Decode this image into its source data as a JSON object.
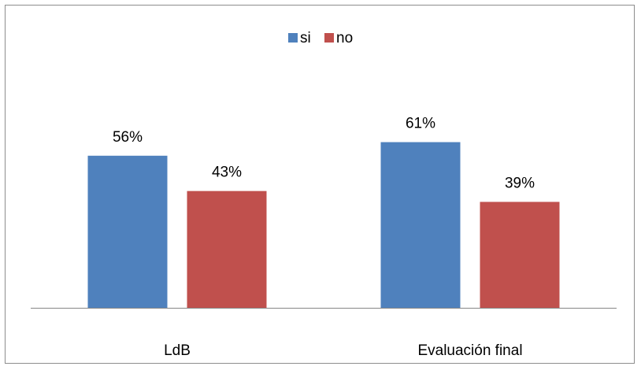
{
  "chart_data": {
    "type": "bar",
    "categories": [
      "LdB",
      "Evaluación final"
    ],
    "series": [
      {
        "name": "si",
        "values": [
          56,
          61
        ],
        "color": "#4f81bd"
      },
      {
        "name": "no",
        "values": [
          43,
          39
        ],
        "color": "#c0504d"
      }
    ],
    "data_labels": [
      [
        "56%",
        "61%"
      ],
      [
        "43%",
        "39%"
      ]
    ],
    "ylim": [
      0,
      100
    ],
    "unit": "%",
    "legend_position": "top-center",
    "grid": false,
    "title": "",
    "xlabel": "",
    "ylabel": ""
  }
}
